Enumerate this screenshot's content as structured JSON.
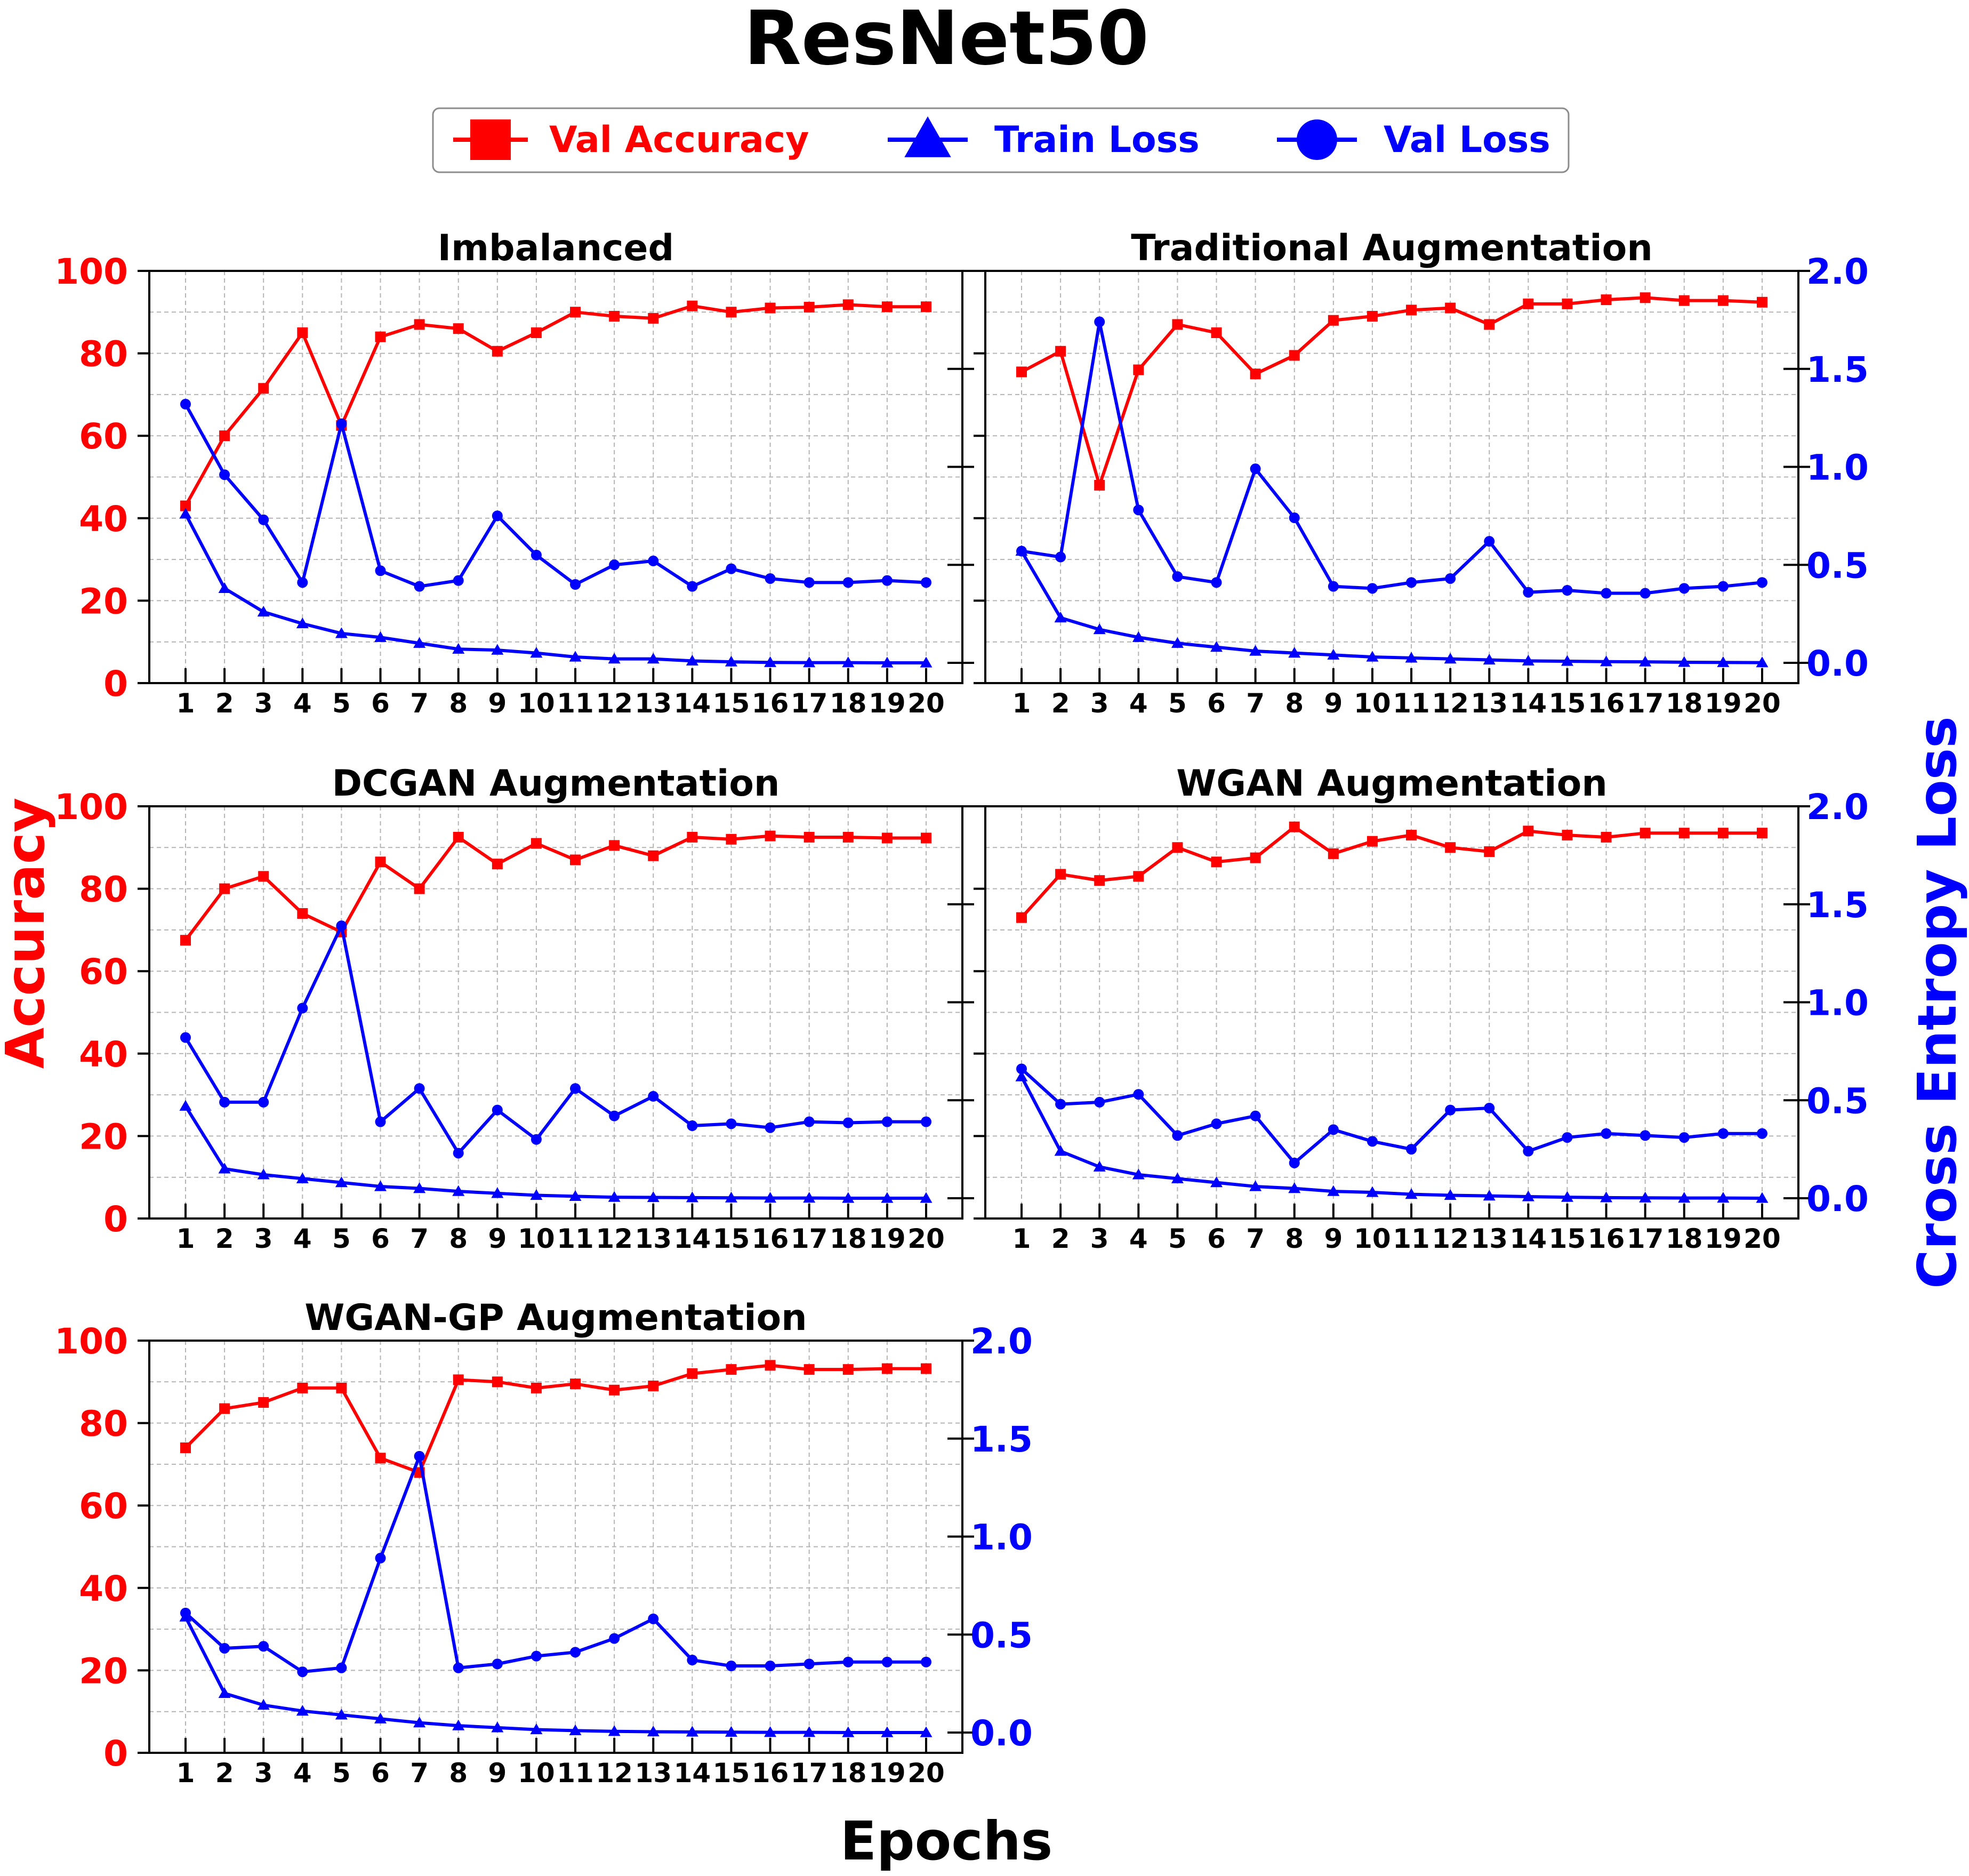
{
  "figure": {
    "title": "ResNet50",
    "xlabel": "Epochs",
    "ylabel_left": "Accuracy",
    "ylabel_right": "Cross Entropy Loss"
  },
  "legend": [
    {
      "label": "Val Accuracy",
      "color": "#ff0000",
      "marker": "square"
    },
    {
      "label": "Train Loss",
      "color": "#0000ff",
      "marker": "triangle"
    },
    {
      "label": "Val Loss",
      "color": "#0000ff",
      "marker": "circle"
    }
  ],
  "chart_data": [
    {
      "type": "line",
      "title": "Imbalanced",
      "x": [
        1,
        2,
        3,
        4,
        5,
        6,
        7,
        8,
        9,
        10,
        11,
        12,
        13,
        14,
        15,
        16,
        17,
        18,
        19,
        20
      ],
      "ylim_left": [
        0,
        100
      ],
      "ylim_right": [
        0.0,
        2.0
      ],
      "left_ticks": [
        "0",
        "20",
        "40",
        "60",
        "80",
        "100"
      ],
      "right_ticks": [],
      "series": [
        {
          "name": "Val Accuracy",
          "axis": "left",
          "color": "#ff0000",
          "marker": "square",
          "values": [
            43,
            60,
            71.5,
            85,
            62.5,
            84,
            87,
            86,
            80.5,
            85,
            90,
            89,
            88.5,
            91.5,
            90,
            91,
            91.2,
            91.8,
            91.3,
            91.3
          ]
        },
        {
          "name": "Train Loss",
          "axis": "right",
          "color": "#0000ff",
          "marker": "triangle",
          "values": [
            0.76,
            0.38,
            0.26,
            0.2,
            0.15,
            0.13,
            0.1,
            0.07,
            0.065,
            0.05,
            0.03,
            0.02,
            0.02,
            0.01,
            0.005,
            0.002,
            0.001,
            0.001,
            0.0,
            0.0
          ]
        },
        {
          "name": "Val Loss",
          "axis": "right",
          "color": "#0000ff",
          "marker": "circle",
          "values": [
            1.32,
            0.96,
            0.73,
            0.41,
            1.22,
            0.47,
            0.39,
            0.42,
            0.75,
            0.55,
            0.4,
            0.5,
            0.52,
            0.39,
            0.48,
            0.43,
            0.41,
            0.41,
            0.42,
            0.41
          ]
        }
      ]
    },
    {
      "type": "line",
      "title": "Traditional Augmentation",
      "x": [
        1,
        2,
        3,
        4,
        5,
        6,
        7,
        8,
        9,
        10,
        11,
        12,
        13,
        14,
        15,
        16,
        17,
        18,
        19,
        20
      ],
      "ylim_left": [
        0,
        100
      ],
      "ylim_right": [
        0.0,
        2.0
      ],
      "left_ticks": [],
      "right_ticks": [
        "0.0",
        "0.5",
        "1.0",
        "1.5",
        "2.0"
      ],
      "series": [
        {
          "name": "Val Accuracy",
          "axis": "left",
          "color": "#ff0000",
          "marker": "square",
          "values": [
            75.5,
            80.5,
            48,
            76,
            87,
            85,
            75,
            79.5,
            88,
            89,
            90.5,
            91,
            87,
            92,
            92,
            93,
            93.5,
            92.8,
            92.8,
            92.4
          ]
        },
        {
          "name": "Train Loss",
          "axis": "right",
          "color": "#0000ff",
          "marker": "triangle",
          "values": [
            0.57,
            0.23,
            0.17,
            0.13,
            0.1,
            0.08,
            0.06,
            0.05,
            0.04,
            0.03,
            0.025,
            0.02,
            0.015,
            0.01,
            0.008,
            0.006,
            0.005,
            0.003,
            0.002,
            0.001
          ]
        },
        {
          "name": "Val Loss",
          "axis": "right",
          "color": "#0000ff",
          "marker": "circle",
          "values": [
            0.57,
            0.54,
            1.74,
            0.78,
            0.44,
            0.41,
            0.99,
            0.74,
            0.39,
            0.38,
            0.41,
            0.43,
            0.62,
            0.36,
            0.37,
            0.355,
            0.355,
            0.38,
            0.39,
            0.41
          ]
        }
      ]
    },
    {
      "type": "line",
      "title": "DCGAN Augmentation",
      "x": [
        1,
        2,
        3,
        4,
        5,
        6,
        7,
        8,
        9,
        10,
        11,
        12,
        13,
        14,
        15,
        16,
        17,
        18,
        19,
        20
      ],
      "ylim_left": [
        0,
        100
      ],
      "ylim_right": [
        0.0,
        2.0
      ],
      "left_ticks": [
        "0",
        "20",
        "40",
        "60",
        "80",
        "100"
      ],
      "right_ticks": [],
      "series": [
        {
          "name": "Val Accuracy",
          "axis": "left",
          "color": "#ff0000",
          "marker": "square",
          "values": [
            67.5,
            80,
            83,
            74,
            69.5,
            86.5,
            80,
            92.5,
            86,
            91,
            87,
            90.5,
            88,
            92.5,
            92,
            92.8,
            92.5,
            92.5,
            92.3,
            92.3
          ]
        },
        {
          "name": "Train Loss",
          "axis": "right",
          "color": "#0000ff",
          "marker": "triangle",
          "values": [
            0.47,
            0.15,
            0.12,
            0.1,
            0.08,
            0.06,
            0.05,
            0.035,
            0.025,
            0.015,
            0.01,
            0.005,
            0.004,
            0.003,
            0.002,
            0.001,
            0.001,
            0.0,
            0.0,
            0.0
          ]
        },
        {
          "name": "Val Loss",
          "axis": "right",
          "color": "#0000ff",
          "marker": "circle",
          "values": [
            0.82,
            0.49,
            0.49,
            0.97,
            1.39,
            0.39,
            0.56,
            0.23,
            0.45,
            0.3,
            0.56,
            0.42,
            0.52,
            0.37,
            0.38,
            0.36,
            0.39,
            0.385,
            0.39,
            0.39
          ]
        }
      ]
    },
    {
      "type": "line",
      "title": "WGAN Augmentation",
      "x": [
        1,
        2,
        3,
        4,
        5,
        6,
        7,
        8,
        9,
        10,
        11,
        12,
        13,
        14,
        15,
        16,
        17,
        18,
        19,
        20
      ],
      "ylim_left": [
        0,
        100
      ],
      "ylim_right": [
        0.0,
        2.0
      ],
      "left_ticks": [],
      "right_ticks": [
        "0.0",
        "0.5",
        "1.0",
        "1.5",
        "2.0"
      ],
      "series": [
        {
          "name": "Val Accuracy",
          "axis": "left",
          "color": "#ff0000",
          "marker": "square",
          "values": [
            73,
            83.5,
            82,
            83,
            90,
            86.5,
            87.5,
            95,
            88.5,
            91.5,
            93,
            90,
            89,
            94,
            93,
            92.5,
            93.5,
            93.5,
            93.5,
            93.5
          ]
        },
        {
          "name": "Train Loss",
          "axis": "right",
          "color": "#0000ff",
          "marker": "triangle",
          "values": [
            0.62,
            0.24,
            0.16,
            0.12,
            0.1,
            0.08,
            0.06,
            0.05,
            0.035,
            0.03,
            0.02,
            0.015,
            0.012,
            0.008,
            0.005,
            0.003,
            0.002,
            0.001,
            0.001,
            0.0
          ]
        },
        {
          "name": "Val Loss",
          "axis": "right",
          "color": "#0000ff",
          "marker": "circle",
          "values": [
            0.66,
            0.48,
            0.49,
            0.53,
            0.32,
            0.38,
            0.42,
            0.18,
            0.35,
            0.29,
            0.25,
            0.45,
            0.46,
            0.24,
            0.31,
            0.33,
            0.32,
            0.31,
            0.33,
            0.33
          ]
        }
      ]
    },
    {
      "type": "line",
      "title": "WGAN-GP Augmentation",
      "x": [
        1,
        2,
        3,
        4,
        5,
        6,
        7,
        8,
        9,
        10,
        11,
        12,
        13,
        14,
        15,
        16,
        17,
        18,
        19,
        20
      ],
      "ylim_left": [
        0,
        100
      ],
      "ylim_right": [
        0.0,
        2.0
      ],
      "left_ticks": [
        "0",
        "20",
        "40",
        "60",
        "80",
        "100"
      ],
      "right_ticks": [
        "0.0",
        "0.5",
        "1.0",
        "1.5",
        "2.0"
      ],
      "series": [
        {
          "name": "Val Accuracy",
          "axis": "left",
          "color": "#ff0000",
          "marker": "square",
          "values": [
            74,
            83.5,
            85,
            88.5,
            88.5,
            71.5,
            68,
            90.5,
            90,
            88.5,
            89.5,
            88,
            89,
            92,
            93,
            94,
            93,
            93,
            93.2,
            93.2
          ]
        },
        {
          "name": "Train Loss",
          "axis": "right",
          "color": "#0000ff",
          "marker": "triangle",
          "values": [
            0.59,
            0.2,
            0.14,
            0.11,
            0.09,
            0.07,
            0.05,
            0.035,
            0.025,
            0.015,
            0.01,
            0.006,
            0.004,
            0.003,
            0.002,
            0.001,
            0.001,
            0.0,
            0.0,
            0.0
          ]
        },
        {
          "name": "Val Loss",
          "axis": "right",
          "color": "#0000ff",
          "marker": "circle",
          "values": [
            0.61,
            0.43,
            0.44,
            0.31,
            0.33,
            0.89,
            1.41,
            0.33,
            0.35,
            0.39,
            0.41,
            0.48,
            0.58,
            0.37,
            0.34,
            0.34,
            0.35,
            0.36,
            0.36,
            0.36
          ]
        }
      ]
    }
  ]
}
